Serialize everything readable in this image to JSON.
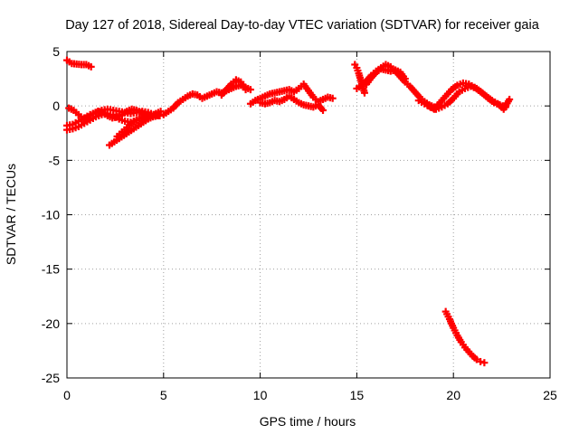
{
  "chart_data": {
    "type": "scatter",
    "title": "Day 127 of 2018, Sidereal Day-to-day VTEC variation (SDTVAR) for receiver gaia",
    "xlabel": "GPS time / hours",
    "ylabel": "SDTVAR / TECUs",
    "xlim": [
      0,
      25
    ],
    "ylim": [
      -25,
      5
    ],
    "xticks": [
      "0",
      "5",
      "10",
      "15",
      "20",
      "25"
    ],
    "yticks": [
      "5",
      "0",
      "-5",
      "-10",
      "-15",
      "-20",
      "-25"
    ],
    "grid": true,
    "marker": "+",
    "color": "#ff0000",
    "series": [
      {
        "name": "s1",
        "x": [
          0.0,
          0.25,
          0.5,
          0.75,
          1.0,
          1.25
        ],
        "y": [
          4.2,
          3.9,
          3.85,
          3.8,
          3.8,
          3.6
        ]
      },
      {
        "name": "s2",
        "x": [
          0.0,
          0.3,
          0.6,
          0.9,
          1.2,
          1.5,
          1.8,
          2.1,
          2.4,
          2.7,
          3.0,
          3.3,
          3.6,
          3.9,
          4.2,
          4.5,
          4.8
        ],
        "y": [
          -1.8,
          -1.7,
          -1.4,
          -1.1,
          -0.8,
          -0.6,
          -0.4,
          -0.3,
          -0.4,
          -0.5,
          -0.6,
          -0.7,
          -0.6,
          -0.5,
          -0.6,
          -0.8,
          -0.9
        ]
      },
      {
        "name": "s3",
        "x": [
          0.0,
          0.3,
          0.6,
          0.9,
          1.2,
          1.5,
          1.8,
          2.1,
          2.4,
          2.7,
          3.0,
          3.3,
          3.6,
          3.9,
          4.2
        ],
        "y": [
          -2.2,
          -2.1,
          -1.9,
          -1.6,
          -1.3,
          -1.0,
          -0.8,
          -0.7,
          -0.9,
          -1.2,
          -1.4,
          -1.5,
          -1.3,
          -1.1,
          -1.0
        ]
      },
      {
        "name": "s4",
        "x": [
          0.1,
          0.35,
          0.6,
          0.85,
          1.1,
          1.35,
          1.6,
          1.85,
          2.1,
          2.35,
          2.6,
          2.85,
          3.1,
          3.35,
          3.6,
          3.85,
          4.1,
          4.35,
          4.6,
          4.85
        ],
        "y": [
          -0.2,
          -0.4,
          -0.8,
          -1.2,
          -1.0,
          -0.7,
          -0.5,
          -0.6,
          -0.9,
          -1.1,
          -1.0,
          -0.8,
          -0.5,
          -0.3,
          -0.4,
          -0.6,
          -0.8,
          -0.9,
          -0.7,
          -0.5
        ]
      },
      {
        "name": "s5",
        "x": [
          2.2,
          2.45,
          2.7,
          2.95,
          3.2,
          3.45,
          3.7,
          3.95,
          4.2,
          4.45,
          4.7
        ],
        "y": [
          -3.6,
          -3.3,
          -3.0,
          -2.7,
          -2.4,
          -2.1,
          -1.8,
          -1.5,
          -1.2,
          -1.0,
          -0.9
        ]
      },
      {
        "name": "s6",
        "x": [
          2.6,
          2.85,
          3.1,
          3.35,
          3.6,
          3.85,
          4.1
        ],
        "y": [
          -2.8,
          -2.4,
          -2.0,
          -1.6,
          -1.3,
          -1.1,
          -1.0
        ]
      },
      {
        "name": "s7",
        "x": [
          5.0,
          5.25,
          5.5,
          5.75,
          6.0,
          6.25,
          6.5,
          6.75,
          7.0,
          7.25,
          7.5,
          7.75,
          8.0,
          8.25,
          8.5,
          8.75,
          9.0,
          9.25,
          9.5
        ],
        "y": [
          -0.8,
          -0.5,
          -0.2,
          0.3,
          0.6,
          0.9,
          1.1,
          1.0,
          0.7,
          0.9,
          1.1,
          1.3,
          1.2,
          1.4,
          1.6,
          1.8,
          1.9,
          1.7,
          1.5
        ]
      },
      {
        "name": "s8",
        "x": [
          8.0,
          8.25,
          8.5,
          8.75,
          9.0,
          9.25
        ],
        "y": [
          1.0,
          1.5,
          2.0,
          2.4,
          2.2,
          1.5
        ]
      },
      {
        "name": "s9",
        "x": [
          9.5,
          9.75,
          10.0,
          10.25,
          10.5,
          10.75,
          11.0,
          11.25,
          11.5,
          11.75,
          12.0,
          12.25,
          12.5,
          12.75,
          13.0,
          13.25,
          13.5,
          13.75
        ],
        "y": [
          0.2,
          0.5,
          0.7,
          0.9,
          1.1,
          1.2,
          1.3,
          1.4,
          1.5,
          1.3,
          1.6,
          2.0,
          1.4,
          0.8,
          0.4,
          0.6,
          0.8,
          0.7
        ]
      },
      {
        "name": "s10",
        "x": [
          10.0,
          10.25,
          10.5,
          10.75,
          11.0,
          11.25,
          11.5,
          11.75,
          12.0,
          12.25,
          12.5,
          12.75,
          13.0,
          13.25
        ],
        "y": [
          0.3,
          0.2,
          0.3,
          0.5,
          0.4,
          0.6,
          0.9,
          0.6,
          0.3,
          0.1,
          0.0,
          -0.1,
          0.1,
          -0.4
        ]
      },
      {
        "name": "s11",
        "x": [
          14.9,
          15.0,
          15.1,
          15.2,
          15.3,
          15.4
        ],
        "y": [
          3.8,
          3.5,
          3.0,
          2.4,
          1.8,
          1.2
        ]
      },
      {
        "name": "s12",
        "x": [
          15.0,
          15.25,
          15.5,
          15.75,
          16.0,
          16.25,
          16.5,
          16.75,
          17.0,
          17.25,
          17.5,
          17.75,
          18.0,
          18.25,
          18.5,
          18.75,
          19.0
        ],
        "y": [
          1.6,
          1.9,
          2.3,
          2.8,
          3.2,
          3.5,
          3.8,
          3.6,
          3.2,
          2.7,
          2.2,
          1.8,
          1.3,
          0.8,
          0.4,
          0.1,
          -0.1
        ]
      },
      {
        "name": "s13",
        "x": [
          15.5,
          15.75,
          16.0,
          16.25,
          16.5,
          16.75,
          17.0,
          17.25,
          17.5
        ],
        "y": [
          2.0,
          2.6,
          3.1,
          3.4,
          3.3,
          3.2,
          3.3,
          3.1,
          2.5
        ]
      },
      {
        "name": "s14",
        "x": [
          18.2,
          18.5,
          18.8,
          19.1,
          19.4,
          19.7,
          20.0,
          20.3,
          20.6,
          20.9,
          21.2,
          21.5,
          21.8,
          22.1,
          22.4,
          22.7
        ],
        "y": [
          0.5,
          0.2,
          -0.1,
          -0.3,
          -0.1,
          0.2,
          0.7,
          1.3,
          1.6,
          1.8,
          1.6,
          1.2,
          0.7,
          0.3,
          0.1,
          -0.1
        ]
      },
      {
        "name": "s15",
        "x": [
          18.7,
          19.0,
          19.3,
          19.6,
          19.9,
          20.2,
          20.5,
          20.8,
          21.1,
          21.4,
          21.7,
          22.0,
          22.3,
          22.6,
          22.9
        ],
        "y": [
          0.0,
          -0.3,
          0.3,
          0.9,
          1.5,
          1.9,
          2.1,
          2.0,
          1.7,
          1.3,
          0.9,
          0.5,
          0.2,
          -0.3,
          0.6
        ]
      },
      {
        "name": "s16",
        "x": [
          19.6,
          19.8,
          20.0,
          20.2,
          20.4,
          20.6,
          20.8,
          21.0,
          21.2,
          21.4,
          21.6
        ],
        "y": [
          -18.9,
          -19.6,
          -20.4,
          -21.1,
          -21.7,
          -22.2,
          -22.6,
          -23.0,
          -23.3,
          -23.5,
          -23.6
        ]
      }
    ]
  }
}
